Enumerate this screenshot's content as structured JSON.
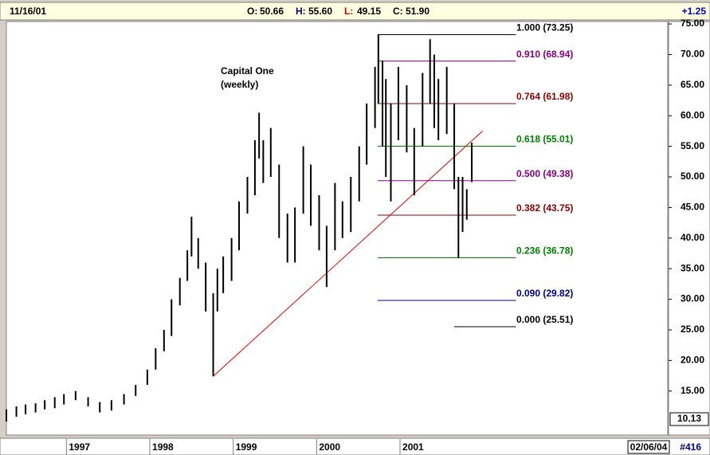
{
  "header": {
    "date": "11/16/01",
    "fields": [
      {
        "label": "O:",
        "value": "50.66",
        "color": "#000000"
      },
      {
        "label": "H:",
        "value": "55.60",
        "color": "#000080"
      },
      {
        "label": "L:",
        "value": "49.15",
        "color": "#cc0000"
      },
      {
        "label": "C:",
        "value": "51.90",
        "color": "#000000"
      }
    ],
    "change": "+1.25"
  },
  "footer": {
    "date_box": "02/06/04",
    "count": "#416"
  },
  "chart_data": {
    "type": "ohlc",
    "annotations": [
      "Capital One",
      "(weekly)"
    ],
    "color": "#000000",
    "x": [
      1996.28,
      1996.4,
      1996.51,
      1996.63,
      1996.74,
      1996.86,
      1996.97,
      1997.11,
      1997.26,
      1997.4,
      1997.54,
      1997.69,
      1997.83,
      1997.97,
      1998.07,
      1998.17,
      1998.26,
      1998.36,
      1998.45,
      1998.5,
      1998.58,
      1998.67,
      1998.76,
      1998.81,
      1998.88,
      1998.98,
      1999.07,
      1999.17,
      1999.26,
      1999.31,
      1999.36,
      1999.45,
      1999.55,
      1999.65,
      1999.74,
      1999.84,
      1999.93,
      2000.03,
      2000.12,
      2000.22,
      2000.31,
      2000.41,
      2000.51,
      2000.6,
      2000.7,
      2000.74,
      2000.79,
      2000.83,
      2000.89,
      2000.98,
      2001.08,
      2001.17,
      2001.27,
      2001.36,
      2001.41,
      2001.46,
      2001.56,
      2001.65,
      2001.7,
      2001.75,
      2001.8,
      2001.86
    ],
    "high": [
      12,
      12.5,
      12.8,
      13,
      13.5,
      14,
      14.5,
      15,
      14,
      13.2,
      13.5,
      14.5,
      16,
      18.5,
      22,
      25,
      30,
      33.5,
      38,
      43.5,
      40,
      36,
      31,
      35,
      37,
      40,
      46,
      50,
      56,
      60.5,
      56,
      58,
      52,
      44,
      45,
      55,
      52,
      47,
      42,
      49,
      46,
      50,
      55,
      62,
      68,
      73.25,
      69,
      66,
      62,
      68,
      65,
      58,
      67,
      72.5,
      70,
      66,
      68,
      62,
      50,
      50,
      48,
      55.6
    ],
    "low": [
      10,
      10.8,
      11.2,
      11.5,
      12,
      12.2,
      12.8,
      13.5,
      12.5,
      11.5,
      11.8,
      12.8,
      14.2,
      16,
      18.5,
      21.5,
      24,
      29,
      33,
      37,
      35,
      28,
      17.4,
      28,
      31,
      33,
      38,
      44,
      47,
      53,
      49,
      50,
      40,
      36,
      36,
      44,
      42,
      38,
      32,
      38,
      40,
      41,
      46,
      52,
      58,
      62,
      55,
      50,
      46,
      56,
      54,
      47,
      55,
      62,
      58,
      56,
      57,
      48,
      36.78,
      41,
      43,
      49.15
    ],
    "fib_levels": [
      {
        "label": "1.000 (73.25)",
        "value": 73.25,
        "x": [
          2000.73,
          2002.39
        ],
        "color": "#000000"
      },
      {
        "label": "0.910 (68.94)",
        "value": 68.94,
        "x": [
          2000.73,
          2002.39
        ],
        "color": "#800080"
      },
      {
        "label": "0.764 (61.98)",
        "value": 61.98,
        "x": [
          2000.73,
          2002.39
        ],
        "color": "#8b0000"
      },
      {
        "label": "0.618 (55.01)",
        "value": 55.01,
        "x": [
          2000.73,
          2002.39
        ],
        "color": "#008000"
      },
      {
        "label": "0.500 (49.38)",
        "value": 49.38,
        "x": [
          2000.73,
          2002.39
        ],
        "color": "#800080"
      },
      {
        "label": "0.382 (43.75)",
        "value": 43.75,
        "x": [
          2000.73,
          2002.39
        ],
        "color": "#8b0000"
      },
      {
        "label": "0.236 (36.78)",
        "value": 36.78,
        "x": [
          2000.73,
          2002.39
        ],
        "color": "#008000"
      },
      {
        "label": "0.090 (29.82)",
        "value": 29.82,
        "x": [
          2000.73,
          2002.39
        ],
        "color": "#000080"
      },
      {
        "label": "0.000 (25.51)",
        "value": 25.51,
        "x": [
          2001.65,
          2002.39
        ],
        "color": "#000000"
      }
    ],
    "trendline": {
      "x": [
        1998.76,
        2001.99
      ],
      "values": [
        17.4,
        57.5
      ],
      "color": "#dd0000"
    },
    "last_box": "10.13",
    "xlim": [
      1996.28,
      2004.21
    ],
    "xticks": [
      1997,
      1998,
      1999,
      2000,
      2001
    ],
    "ylim": [
      7.8,
      75.4
    ],
    "yticks": [
      {
        "value": 75,
        "label": "75.00"
      },
      {
        "value": 70,
        "label": "70.00"
      },
      {
        "value": 65,
        "label": "65.00"
      },
      {
        "value": 60,
        "label": "60.00"
      },
      {
        "value": 55,
        "label": "55.00"
      },
      {
        "value": 50,
        "label": "50.00"
      },
      {
        "value": 45,
        "label": "45.00"
      },
      {
        "value": 40,
        "label": "40.00"
      },
      {
        "value": 35,
        "label": "35.00"
      },
      {
        "value": 30,
        "label": "30.00"
      },
      {
        "value": 25,
        "label": "25.00"
      },
      {
        "value": 20,
        "label": "20.00"
      },
      {
        "value": 15,
        "label": "15.00"
      }
    ]
  }
}
